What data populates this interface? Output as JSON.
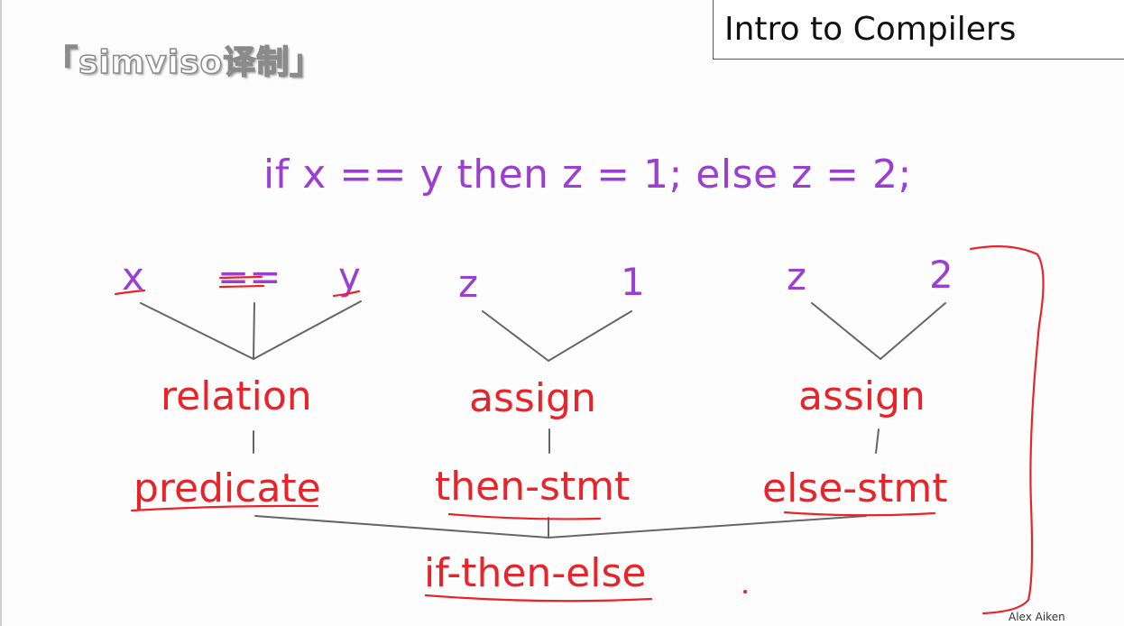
{
  "watermark": "「simviso译制」",
  "title": "Intro to Compilers",
  "code": "if x == y then z = 1; else z = 2;",
  "tokens": {
    "x": "x",
    "eqeq": "==",
    "y": "y",
    "z1": "z",
    "one": "1",
    "z2": "z",
    "two": "2"
  },
  "nodes": {
    "relation": "relation",
    "assign1": "assign",
    "assign2": "assign",
    "predicate": "predicate",
    "then_stmt": "then-stmt",
    "else_stmt": "else-stmt",
    "if_then_else": "if-then-else"
  },
  "author": "Alex Aiken",
  "colors": {
    "code": "#9b3fd0",
    "annotation": "#e8242a",
    "tree_lines": "#666666"
  }
}
